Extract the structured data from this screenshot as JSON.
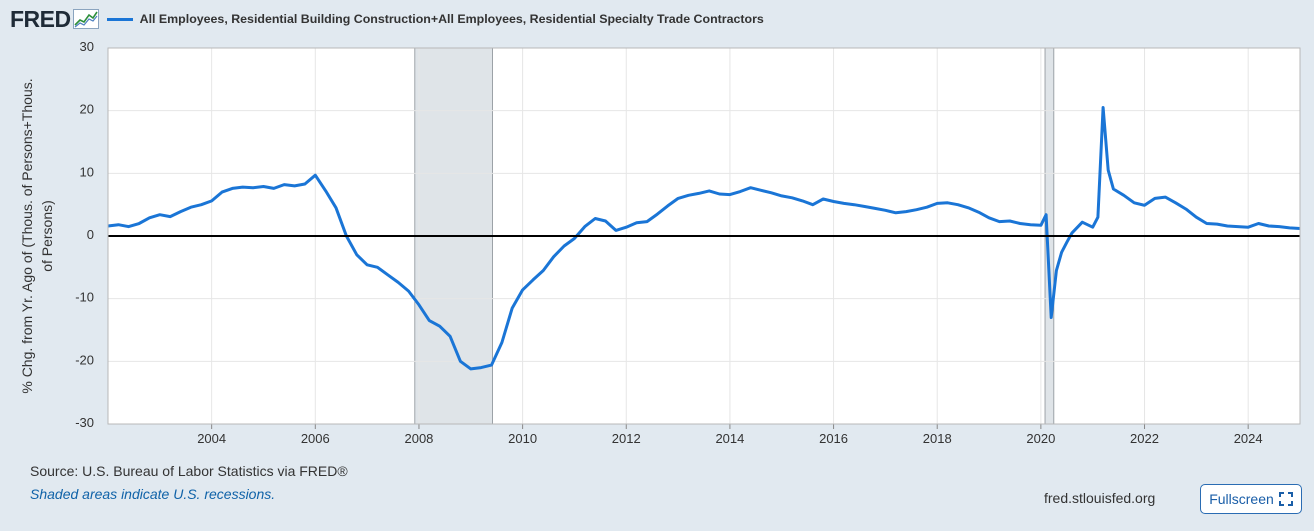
{
  "brand": {
    "logo_text": "FRED",
    "logo_icon": "fred-graph-icon"
  },
  "chart_data": {
    "type": "line",
    "title": "",
    "series": [
      {
        "name": "All Employees, Residential Building Construction+All Employees, Residential Specialty Trade Contractors",
        "color": "#1a75d6",
        "x": [
          2002.0,
          2002.2,
          2002.4,
          2002.6,
          2002.8,
          2003.0,
          2003.2,
          2003.4,
          2003.6,
          2003.8,
          2004.0,
          2004.2,
          2004.4,
          2004.6,
          2004.8,
          2005.0,
          2005.2,
          2005.4,
          2005.6,
          2005.8,
          2006.0,
          2006.2,
          2006.4,
          2006.6,
          2006.8,
          2007.0,
          2007.2,
          2007.4,
          2007.6,
          2007.8,
          2008.0,
          2008.2,
          2008.4,
          2008.6,
          2008.8,
          2009.0,
          2009.2,
          2009.4,
          2009.6,
          2009.8,
          2010.0,
          2010.2,
          2010.4,
          2010.6,
          2010.8,
          2011.0,
          2011.2,
          2011.4,
          2011.6,
          2011.8,
          2012.0,
          2012.2,
          2012.4,
          2012.6,
          2012.8,
          2013.0,
          2013.2,
          2013.4,
          2013.6,
          2013.8,
          2014.0,
          2014.2,
          2014.4,
          2014.6,
          2014.8,
          2015.0,
          2015.2,
          2015.4,
          2015.6,
          2015.8,
          2016.0,
          2016.2,
          2016.4,
          2016.6,
          2016.8,
          2017.0,
          2017.2,
          2017.4,
          2017.6,
          2017.8,
          2018.0,
          2018.2,
          2018.4,
          2018.6,
          2018.8,
          2019.0,
          2019.2,
          2019.4,
          2019.6,
          2019.8,
          2020.0,
          2020.1,
          2020.2,
          2020.3,
          2020.4,
          2020.5,
          2020.6,
          2020.8,
          2021.0,
          2021.1,
          2021.2,
          2021.3,
          2021.4,
          2021.6,
          2021.8,
          2022.0,
          2022.2,
          2022.4,
          2022.6,
          2022.8,
          2023.0,
          2023.2,
          2023.4,
          2023.6,
          2023.8,
          2024.0,
          2024.2,
          2024.4,
          2024.6,
          2024.8,
          2025.0
        ],
        "values": [
          1.6,
          1.8,
          1.5,
          2.0,
          2.9,
          3.4,
          3.1,
          3.9,
          4.6,
          5.0,
          5.6,
          7.0,
          7.6,
          7.8,
          7.7,
          7.9,
          7.6,
          8.2,
          8.0,
          8.3,
          9.7,
          7.2,
          4.5,
          0.0,
          -3.0,
          -4.6,
          -5.0,
          -6.2,
          -7.4,
          -8.8,
          -11.0,
          -13.5,
          -14.4,
          -16.0,
          -20.0,
          -21.2,
          -21.0,
          -20.6,
          -17.0,
          -11.5,
          -8.6,
          -7.0,
          -5.5,
          -3.3,
          -1.6,
          -0.4,
          1.5,
          2.8,
          2.4,
          0.9,
          1.4,
          2.1,
          2.3,
          3.5,
          4.8,
          6.0,
          6.5,
          6.8,
          7.2,
          6.7,
          6.6,
          7.1,
          7.7,
          7.3,
          6.9,
          6.4,
          6.1,
          5.6,
          5.0,
          5.9,
          5.5,
          5.2,
          5.0,
          4.7,
          4.4,
          4.1,
          3.7,
          3.9,
          4.2,
          4.6,
          5.2,
          5.3,
          5.0,
          4.5,
          3.8,
          2.9,
          2.3,
          2.4,
          2.0,
          1.8,
          1.7,
          3.4,
          -13.0,
          -5.5,
          -2.6,
          -1.0,
          0.5,
          2.2,
          1.4,
          3.0,
          20.5,
          10.5,
          7.5,
          6.5,
          5.3,
          4.9,
          6.0,
          6.2,
          5.3,
          4.3,
          3.0,
          2.0,
          1.9,
          1.6,
          1.5,
          1.4,
          2.0,
          1.6,
          1.5,
          1.3,
          1.2
        ]
      }
    ],
    "xlim": [
      2002.0,
      2025.0
    ],
    "ylim": [
      -30,
      30
    ],
    "xticks": [
      2004,
      2006,
      2008,
      2010,
      2012,
      2014,
      2016,
      2018,
      2020,
      2022,
      2024
    ],
    "xtick_labels": [
      "2004",
      "2006",
      "2008",
      "2010",
      "2012",
      "2014",
      "2016",
      "2018",
      "2020",
      "2022",
      "2024"
    ],
    "yticks": [
      30,
      20,
      10,
      0,
      -10,
      -20,
      -30
    ],
    "ytick_labels": [
      "30",
      "20",
      "10",
      "0",
      "-10",
      "-20",
      "-30"
    ],
    "ylabel_line1": "% Chg. from Yr. Ago of (Thous. of Persons+Thous.",
    "ylabel_line2": "of Persons)",
    "recessions": [
      {
        "start": 2007.92,
        "end": 2009.42
      },
      {
        "start": 2020.08,
        "end": 2020.25
      }
    ],
    "recession_color": "#dfe4e8",
    "zero_line_color": "#000000",
    "grid": true,
    "legend_position": "top"
  },
  "footer": {
    "source": "Source: U.S. Bureau of Labor Statistics via FRED®",
    "note": "Shaded areas indicate U.S. recessions.",
    "site": "fred.stlouisfed.org",
    "fullscreen_label": "Fullscreen",
    "fullscreen_icon": "expand-icon"
  }
}
